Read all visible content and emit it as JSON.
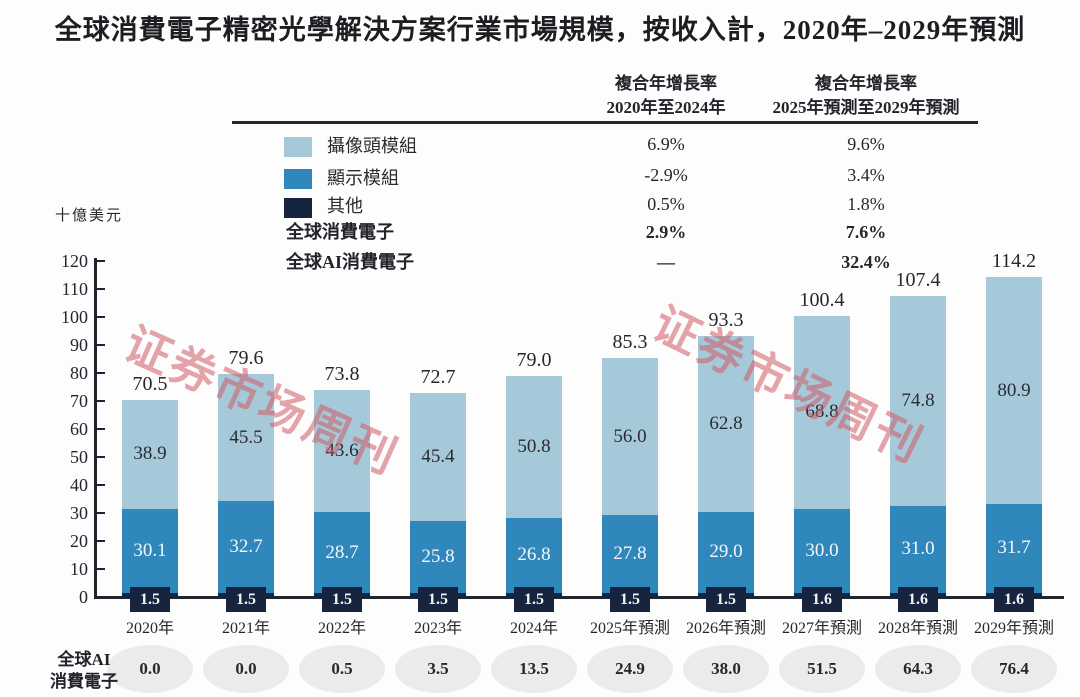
{
  "title": "全球消費電子精密光學解決方案行業市場規模，按收入計，2020年–2029年預測",
  "watermark": {
    "text": "证券市场周刊",
    "color": "rgba(205,90,101,0.55)"
  },
  "cagr_table": {
    "col1_header": {
      "line1": "複合年增長率",
      "line2": "2020年至2024年"
    },
    "col2_header": {
      "line1": "複合年增長率",
      "line2": "2025年預測至2029年預測"
    },
    "rows": [
      {
        "label": "攝像頭模組",
        "swatch": "#a6c9da",
        "col1": "6.9%",
        "col2": "9.6%",
        "bold": false
      },
      {
        "label": "顯示模組",
        "swatch": "#2f87bc",
        "col1": "-2.9%",
        "col2": "3.4%",
        "bold": false
      },
      {
        "label": "其他",
        "swatch": "#16243f",
        "col1": "0.5%",
        "col2": "1.8%",
        "bold": false
      },
      {
        "label": "全球消費電子",
        "col1": "2.9%",
        "col2": "7.6%",
        "bold": true
      },
      {
        "label": "全球AI消費電子",
        "col1": "—",
        "col2": "32.4%",
        "bold": true
      }
    ]
  },
  "chart_data": {
    "type": "bar",
    "stacked": true,
    "title": "全球消費電子精密光學解決方案行業市場規模，按收入計，2020年–2029年預測",
    "ylabel": "十億美元",
    "xlabel": "",
    "ylim": [
      0,
      120
    ],
    "ytick_step": 10,
    "grid": false,
    "legend_position": "top-left",
    "categories": [
      "2020年",
      "2021年",
      "2022年",
      "2023年",
      "2024年",
      "2025年預測",
      "2026年預測",
      "2027年預測",
      "2028年預測",
      "2029年預測"
    ],
    "series": [
      {
        "name": "其他",
        "color": "#16243f",
        "values": [
          1.5,
          1.5,
          1.5,
          1.5,
          1.5,
          1.5,
          1.5,
          1.6,
          1.6,
          1.6
        ]
      },
      {
        "name": "顯示模組",
        "color": "#2f87bc",
        "values": [
          30.1,
          32.7,
          28.7,
          25.8,
          26.8,
          27.8,
          29.0,
          30.0,
          31.0,
          31.7
        ]
      },
      {
        "name": "攝像頭模組",
        "color": "#a6c9da",
        "values": [
          38.9,
          45.5,
          43.6,
          45.4,
          50.8,
          56.0,
          62.8,
          68.8,
          74.8,
          80.9
        ]
      }
    ],
    "totals": [
      70.5,
      79.6,
      73.8,
      72.7,
      79.0,
      85.3,
      93.3,
      100.4,
      107.4,
      114.2
    ]
  },
  "ai_row": {
    "label_line1": "全球AI",
    "label_line2": "消費電子",
    "values": [
      "0.0",
      "0.0",
      "0.5",
      "3.5",
      "13.5",
      "24.9",
      "38.0",
      "51.5",
      "64.3",
      "76.4"
    ]
  }
}
